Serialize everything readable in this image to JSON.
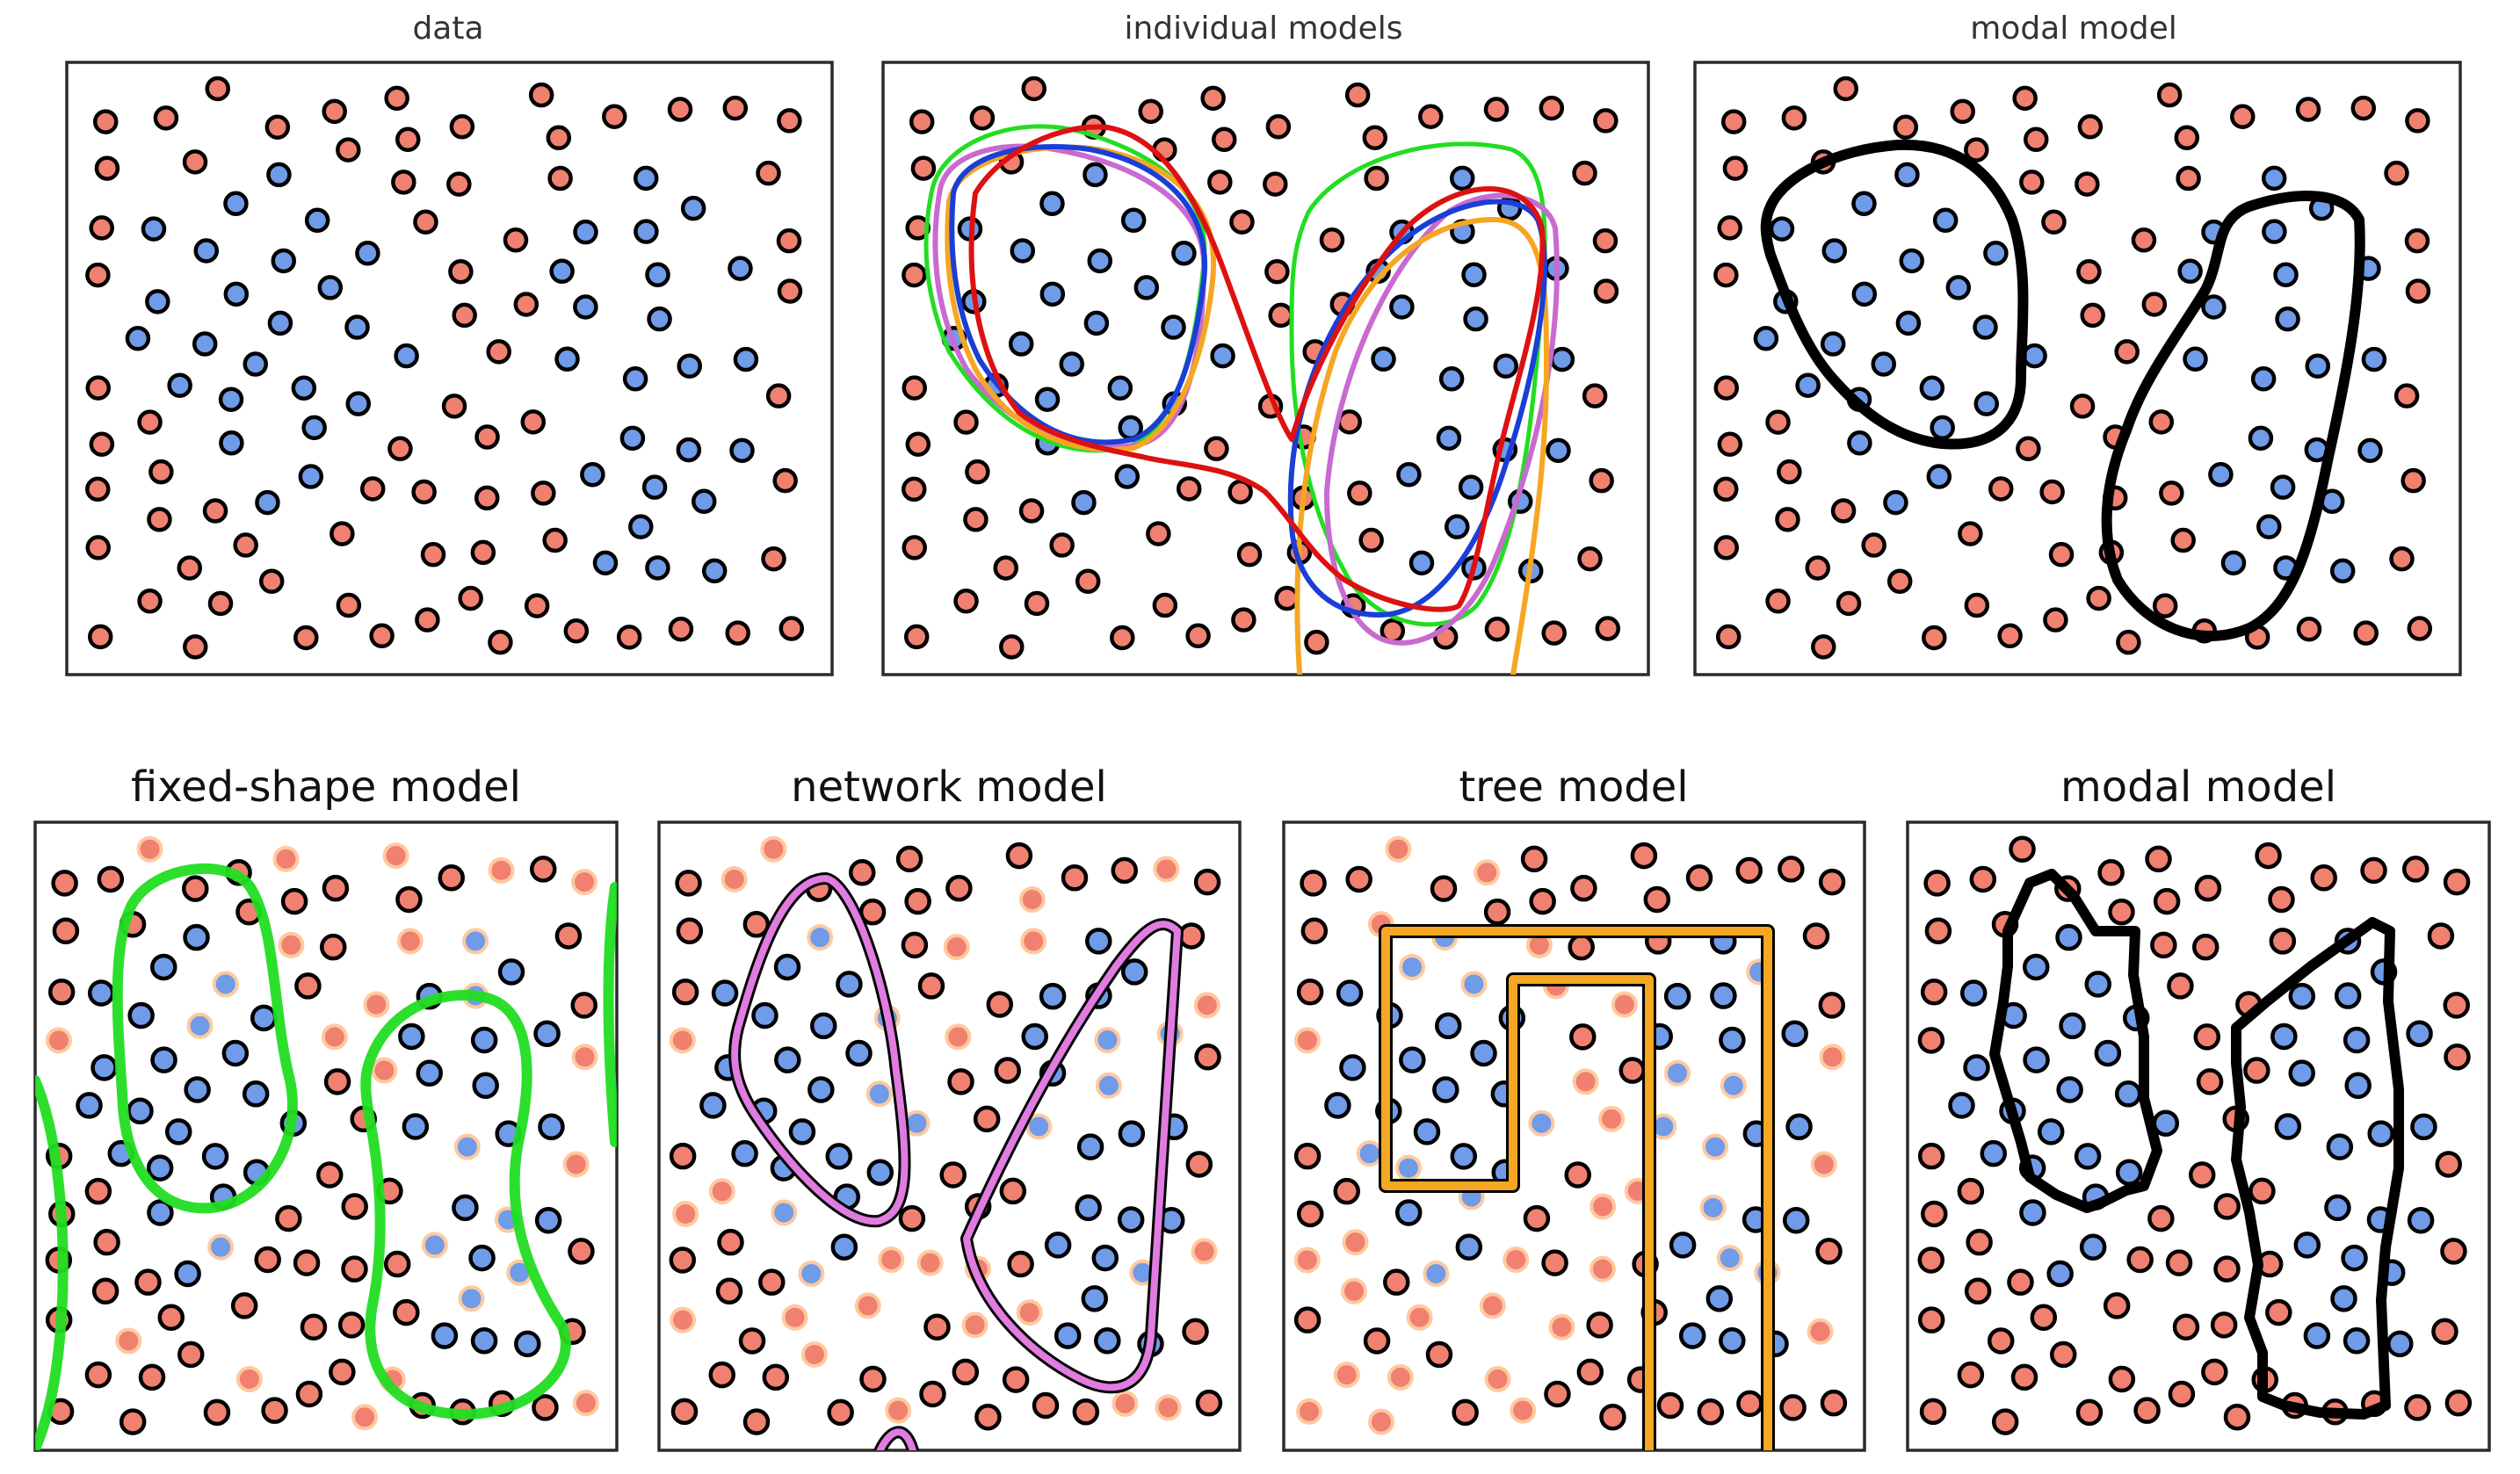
{
  "colors": {
    "background": "#ffffff",
    "red_class": "#f08070",
    "blue_class": "#6f9be8",
    "dot_outline": "#000000",
    "misclassified_outline": "#ffc9a0",
    "network_model": "#e07be0",
    "tree_model": "#f5a623",
    "fixed_shape_model": "#22dd22",
    "modal_model": "#000000",
    "individual_blue": "#1a3fd6",
    "individual_red": "#dd1111"
  },
  "top_row": {
    "panels": [
      {
        "id": "data",
        "title": "data"
      },
      {
        "id": "individual",
        "title": "individual models"
      },
      {
        "id": "modal",
        "title": "modal model"
      }
    ]
  },
  "bottom_row": {
    "panels": [
      {
        "id": "fixed",
        "title": "fixed-shape model",
        "boundary_color_name": "fixed_shape_model"
      },
      {
        "id": "network",
        "title": "network model",
        "boundary_color_name": "network_model"
      },
      {
        "id": "tree",
        "title": "tree model",
        "boundary_color_name": "tree_model"
      },
      {
        "id": "modal2",
        "title": "modal model",
        "boundary_color_name": "modal_model"
      }
    ]
  }
}
